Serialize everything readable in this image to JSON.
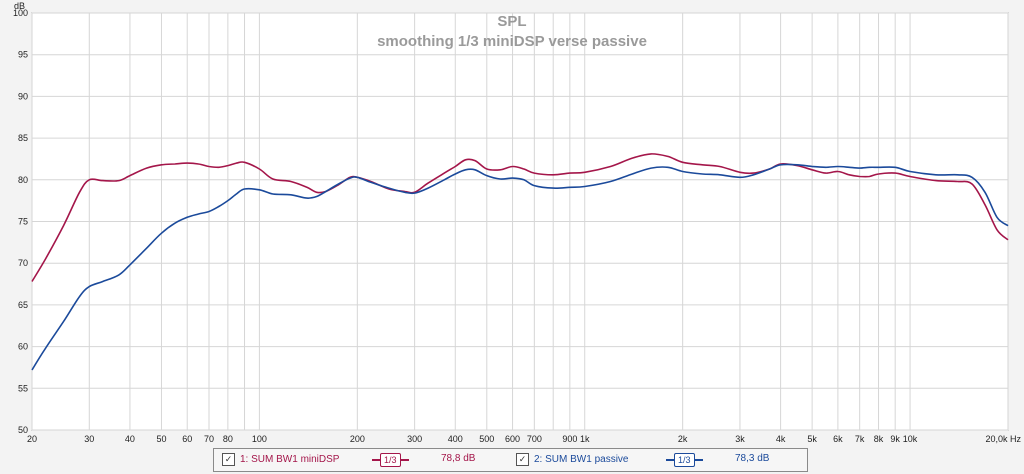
{
  "chart_data": {
    "type": "line",
    "title": "SPL",
    "subtitle": "smoothing 1/3 miniDSP verse passive",
    "ylabel": "dB",
    "xlabel": "Hz",
    "x_scale": "log",
    "xlim": [
      20,
      20000
    ],
    "ylim": [
      50,
      100
    ],
    "grid": true,
    "y_ticks": [
      50,
      55,
      60,
      65,
      70,
      75,
      80,
      85,
      90,
      95,
      100
    ],
    "x_ticks": [
      {
        "v": 20,
        "l": "20"
      },
      {
        "v": 30,
        "l": "30"
      },
      {
        "v": 40,
        "l": "40"
      },
      {
        "v": 50,
        "l": "50"
      },
      {
        "v": 60,
        "l": "60"
      },
      {
        "v": 70,
        "l": "70"
      },
      {
        "v": 80,
        "l": "80"
      },
      {
        "v": 100,
        "l": "100"
      },
      {
        "v": 200,
        "l": "200"
      },
      {
        "v": 300,
        "l": "300"
      },
      {
        "v": 400,
        "l": "400"
      },
      {
        "v": 500,
        "l": "500"
      },
      {
        "v": 600,
        "l": "600"
      },
      {
        "v": 700,
        "l": "700"
      },
      {
        "v": 900,
        "l": "900"
      },
      {
        "v": 1000,
        "l": "1k"
      },
      {
        "v": 2000,
        "l": "2k"
      },
      {
        "v": 3000,
        "l": "3k"
      },
      {
        "v": 4000,
        "l": "4k"
      },
      {
        "v": 5000,
        "l": "5k"
      },
      {
        "v": 6000,
        "l": "6k"
      },
      {
        "v": 7000,
        "l": "7k"
      },
      {
        "v": 8000,
        "l": "8k"
      },
      {
        "v": 9000,
        "l": "9k"
      },
      {
        "v": 10000,
        "l": "10k"
      },
      {
        "v": 20000,
        "l": "20,0k Hz"
      }
    ],
    "series": [
      {
        "name": "1: SUM BW1 miniDSP",
        "color": "#a4164a",
        "points": [
          [
            20,
            67.8
          ],
          [
            22,
            70.5
          ],
          [
            25,
            74.5
          ],
          [
            28,
            78.5
          ],
          [
            30,
            80.0
          ],
          [
            33,
            79.9
          ],
          [
            37,
            79.9
          ],
          [
            40,
            80.5
          ],
          [
            45,
            81.4
          ],
          [
            50,
            81.8
          ],
          [
            55,
            81.9
          ],
          [
            60,
            82.0
          ],
          [
            65,
            81.9
          ],
          [
            70,
            81.6
          ],
          [
            75,
            81.5
          ],
          [
            80,
            81.7
          ],
          [
            85,
            82.0
          ],
          [
            90,
            82.1
          ],
          [
            100,
            81.3
          ],
          [
            110,
            80.1
          ],
          [
            125,
            79.8
          ],
          [
            140,
            79.1
          ],
          [
            150,
            78.5
          ],
          [
            160,
            78.6
          ],
          [
            175,
            79.4
          ],
          [
            190,
            80.3
          ],
          [
            200,
            80.3
          ],
          [
            220,
            79.8
          ],
          [
            250,
            78.9
          ],
          [
            280,
            78.6
          ],
          [
            300,
            78.5
          ],
          [
            330,
            79.6
          ],
          [
            370,
            80.8
          ],
          [
            400,
            81.6
          ],
          [
            430,
            82.4
          ],
          [
            460,
            82.3
          ],
          [
            500,
            81.3
          ],
          [
            550,
            81.2
          ],
          [
            600,
            81.6
          ],
          [
            650,
            81.3
          ],
          [
            700,
            80.8
          ],
          [
            800,
            80.6
          ],
          [
            900,
            80.8
          ],
          [
            1000,
            80.9
          ],
          [
            1200,
            81.6
          ],
          [
            1400,
            82.6
          ],
          [
            1600,
            83.1
          ],
          [
            1800,
            82.8
          ],
          [
            2000,
            82.1
          ],
          [
            2300,
            81.8
          ],
          [
            2600,
            81.6
          ],
          [
            3000,
            80.9
          ],
          [
            3300,
            80.8
          ],
          [
            3700,
            81.3
          ],
          [
            4000,
            81.9
          ],
          [
            4500,
            81.7
          ],
          [
            5000,
            81.2
          ],
          [
            5500,
            80.8
          ],
          [
            6000,
            81.0
          ],
          [
            6500,
            80.6
          ],
          [
            7000,
            80.4
          ],
          [
            7500,
            80.4
          ],
          [
            8000,
            80.7
          ],
          [
            9000,
            80.8
          ],
          [
            10000,
            80.4
          ],
          [
            12000,
            79.9
          ],
          [
            14000,
            79.8
          ],
          [
            15500,
            79.5
          ],
          [
            17000,
            77.0
          ],
          [
            18500,
            74.0
          ],
          [
            20000,
            72.8
          ]
        ]
      },
      {
        "name": "2: SUM BW1 passive",
        "color": "#1b4a9b",
        "points": [
          [
            20,
            57.2
          ],
          [
            22,
            59.8
          ],
          [
            25,
            63.0
          ],
          [
            28,
            66.0
          ],
          [
            30,
            67.2
          ],
          [
            33,
            67.8
          ],
          [
            37,
            68.6
          ],
          [
            40,
            69.8
          ],
          [
            45,
            71.8
          ],
          [
            50,
            73.6
          ],
          [
            55,
            74.8
          ],
          [
            60,
            75.5
          ],
          [
            65,
            75.9
          ],
          [
            70,
            76.2
          ],
          [
            75,
            76.8
          ],
          [
            80,
            77.5
          ],
          [
            85,
            78.3
          ],
          [
            90,
            78.9
          ],
          [
            100,
            78.8
          ],
          [
            110,
            78.3
          ],
          [
            125,
            78.2
          ],
          [
            140,
            77.8
          ],
          [
            150,
            78.0
          ],
          [
            160,
            78.6
          ],
          [
            175,
            79.5
          ],
          [
            190,
            80.2
          ],
          [
            200,
            80.3
          ],
          [
            220,
            79.7
          ],
          [
            250,
            79.0
          ],
          [
            280,
            78.5
          ],
          [
            300,
            78.4
          ],
          [
            330,
            79.0
          ],
          [
            370,
            80.0
          ],
          [
            400,
            80.7
          ],
          [
            430,
            81.2
          ],
          [
            460,
            81.2
          ],
          [
            500,
            80.5
          ],
          [
            550,
            80.1
          ],
          [
            600,
            80.2
          ],
          [
            650,
            80.0
          ],
          [
            700,
            79.3
          ],
          [
            800,
            79.0
          ],
          [
            900,
            79.1
          ],
          [
            1000,
            79.2
          ],
          [
            1200,
            79.8
          ],
          [
            1400,
            80.7
          ],
          [
            1600,
            81.4
          ],
          [
            1800,
            81.5
          ],
          [
            2000,
            81.0
          ],
          [
            2300,
            80.7
          ],
          [
            2600,
            80.6
          ],
          [
            3000,
            80.3
          ],
          [
            3300,
            80.6
          ],
          [
            3700,
            81.3
          ],
          [
            4000,
            81.8
          ],
          [
            4500,
            81.8
          ],
          [
            5000,
            81.6
          ],
          [
            5500,
            81.5
          ],
          [
            6000,
            81.6
          ],
          [
            6500,
            81.5
          ],
          [
            7000,
            81.4
          ],
          [
            7500,
            81.5
          ],
          [
            8000,
            81.5
          ],
          [
            9000,
            81.5
          ],
          [
            10000,
            81.0
          ],
          [
            12000,
            80.6
          ],
          [
            14000,
            80.6
          ],
          [
            15500,
            80.3
          ],
          [
            17000,
            78.5
          ],
          [
            18500,
            75.5
          ],
          [
            20000,
            74.5
          ]
        ]
      }
    ]
  },
  "legend": {
    "items": [
      {
        "label": "1: SUM BW1 miniDSP",
        "smoothing": "1/3",
        "level": "78,8 dB",
        "color": "#a4164a",
        "checked": "✓"
      },
      {
        "label": "2: SUM BW1 passive",
        "smoothing": "1/3",
        "level": "78,3 dB",
        "color": "#1b4a9b",
        "checked": "✓"
      }
    ]
  }
}
